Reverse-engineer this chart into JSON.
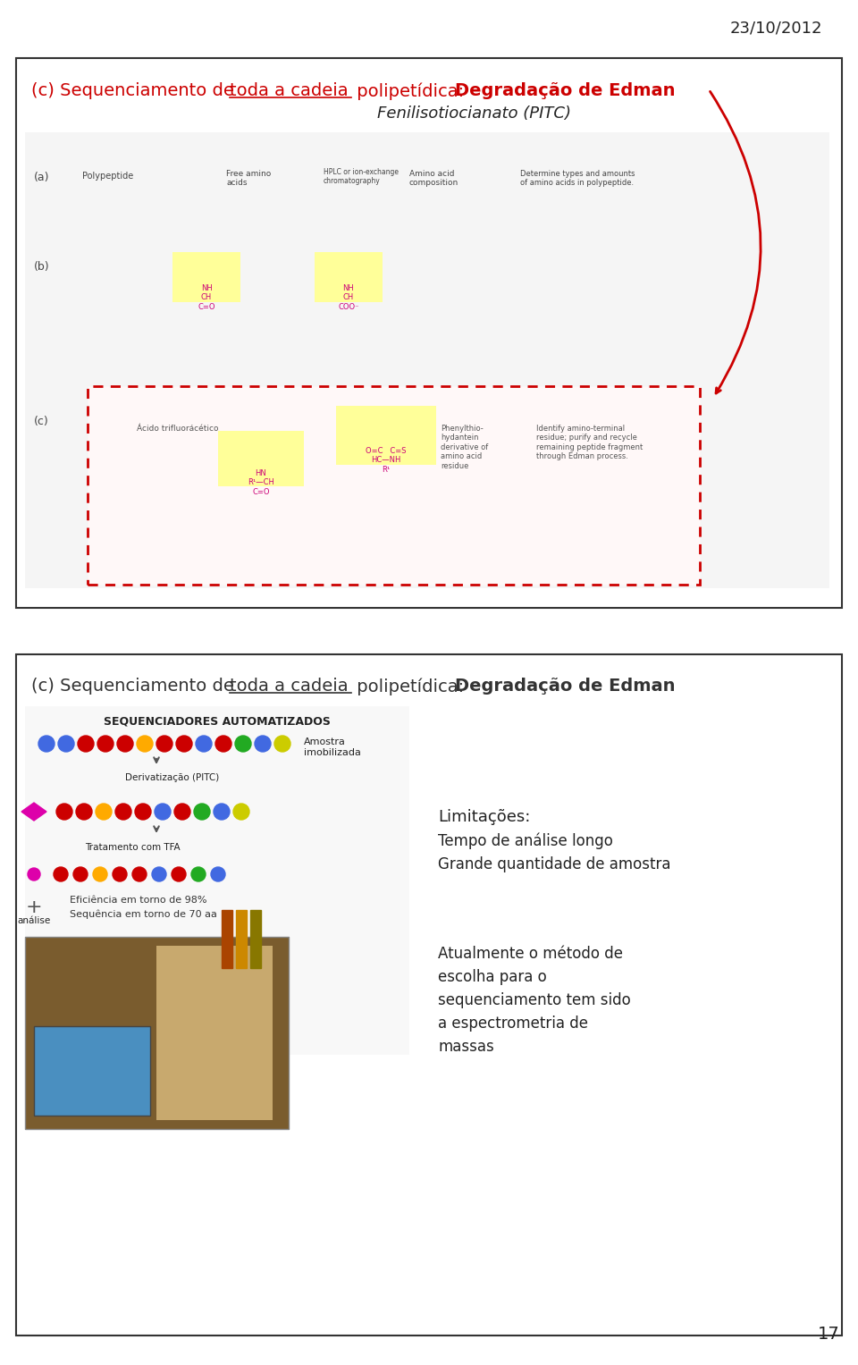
{
  "date_text": "23/10/2012",
  "page_number": "17",
  "slide1_color": "#cc0000",
  "slide2_color": "#333333",
  "bg_color": "#ffffff",
  "border_color": "#333333",
  "limitations_title": "Limitações:",
  "limitations_line1": "Tempo de análise longo",
  "limitations_line2": "Grande quantidade de amostra",
  "method_line1": "Atualmente o método de",
  "method_line2": "escolha para o",
  "method_line3": "sequenciamento tem sido",
  "method_line4": "a espectrometria de",
  "method_line5": "massas",
  "title_part1": "(c) Sequenciamento de ",
  "title_underline": "toda a cadeia",
  "title_part2": " polipetídica: ",
  "title_bold": "Degradação de Edman",
  "subtitle_italic": "Fenilisotiocianato (PITC)",
  "seq_title": "SEQUENCIADORES AUTOMATIZADOS",
  "amostra_label": "Amostra\nimobilizada",
  "deriv_label": "Derivatização (PITC)",
  "tfa_label": "Tratamento com TFA",
  "efic_line1": "Eficiência em torno de 98%",
  "efic_line2": "Sequência em torno de 70 aa",
  "analise_label": "análise",
  "colors_row1": [
    "#4169e1",
    "#4169e1",
    "#cc0000",
    "#cc0000",
    "#cc0000",
    "#ffaa00",
    "#cc0000",
    "#cc0000",
    "#4169e1",
    "#cc0000",
    "#22aa22",
    "#4169e1",
    "#cccc00"
  ],
  "colors_row2": [
    "#cc0000",
    "#cc0000",
    "#ffaa00",
    "#cc0000",
    "#cc0000",
    "#4169e1",
    "#cc0000",
    "#22aa22",
    "#4169e1",
    "#cccc00"
  ],
  "colors_row3": [
    "#cc0000",
    "#cc0000",
    "#ffaa00",
    "#cc0000",
    "#cc0000",
    "#4169e1",
    "#cc0000",
    "#22aa22",
    "#4169e1"
  ]
}
